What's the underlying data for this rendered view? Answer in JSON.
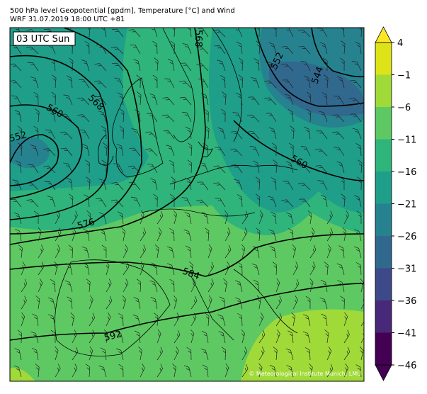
{
  "header": {
    "line1": "500 hPa level Geopotential [gpdm], Temperature [°C] and Wind",
    "line2": "WRF 31.07.2019 18:00 UTC +81"
  },
  "map": {
    "time_label": "03 UTC Sun",
    "copyright": "© Meteorological Institute Munich, LMU",
    "contour_labels": [
      "568",
      "560",
      "552",
      "576",
      "584",
      "592",
      "552",
      "544",
      "560",
      "568"
    ]
  },
  "colorbar": {
    "ticks": [
      4,
      {
        "value": -1,
        "label": "−1"
      },
      {
        "value": -6,
        "label": "−6"
      },
      {
        "value": -11,
        "label": "−11"
      },
      {
        "value": -16,
        "label": "−16"
      },
      {
        "value": -21,
        "label": "−21"
      },
      {
        "value": -26,
        "label": "−26"
      },
      {
        "value": -31,
        "label": "−31"
      },
      {
        "value": -36,
        "label": "−36"
      },
      {
        "value": -41,
        "label": "−41"
      },
      {
        "value": -46,
        "label": "−46"
      }
    ],
    "colors": [
      "#fde725",
      "#dde318",
      "#a0da39",
      "#5ec962",
      "#2fb47c",
      "#1f9e89",
      "#26828e",
      "#31688e",
      "#3e4989",
      "#482878",
      "#440154",
      "#440154"
    ]
  }
}
